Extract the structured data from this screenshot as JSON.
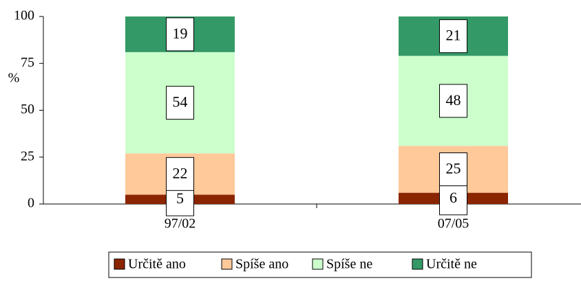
{
  "chart_data": {
    "type": "stacked_bar",
    "y_label": "%",
    "categories": [
      "97/02",
      "07/05"
    ],
    "series": [
      {
        "name": "Určitě ano",
        "color": "#8b2500",
        "values": [
          5,
          6
        ]
      },
      {
        "name": "Spíše ano",
        "color": "#ffc99a",
        "values": [
          22,
          25
        ]
      },
      {
        "name": "Spíše ne",
        "color": "#ccffcc",
        "values": [
          54,
          48
        ]
      },
      {
        "name": "Určitě ne",
        "color": "#339966",
        "values": [
          19,
          21
        ]
      }
    ],
    "ylim": [
      0,
      100
    ],
    "yticks": [
      0,
      25,
      50,
      75,
      100
    ],
    "legend": "bottom"
  }
}
